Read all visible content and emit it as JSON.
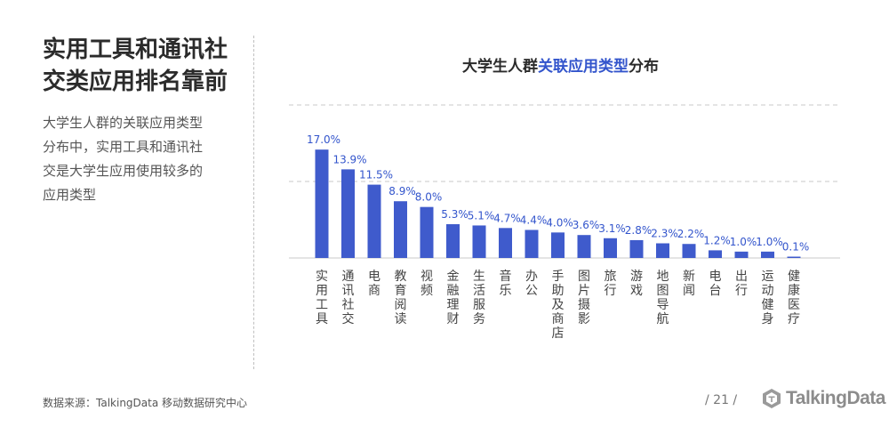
{
  "left": {
    "title_lines": [
      "实用工具和通讯社",
      "交类应用排名靠前"
    ],
    "desc_lines": [
      "大学生人群的关联应用类型",
      "分布中，实用工具和通讯社",
      "交是大学生应用使用较多的",
      "应用类型"
    ]
  },
  "header": {
    "title_pre": "大学生人群",
    "title_highlight": "关联应用类型",
    "title_post": "分布"
  },
  "footer": {
    "source": "数据来源：TalkingData 移动数据研究中心",
    "page": "/ 21 /",
    "logo_text": "TalkingData"
  },
  "colors": {
    "bar": "#3f5bcc",
    "label": "#3355cc",
    "highlight": "#3355cc",
    "grid": "#c8c8c8"
  },
  "chart_data": {
    "type": "bar",
    "categories": [
      "实用工具",
      "通讯社交",
      "电商",
      "教育阅读",
      "视频",
      "金融理财",
      "生活服务",
      "音乐",
      "办公",
      "手助及商店",
      "图片摄影",
      "旅行",
      "游戏",
      "地图导航",
      "新闻",
      "电台",
      "出行",
      "运动健身",
      "健康医疗"
    ],
    "values": [
      17.0,
      13.9,
      11.5,
      8.9,
      8.0,
      5.3,
      5.1,
      4.7,
      4.4,
      4.0,
      3.6,
      3.1,
      2.8,
      2.3,
      2.2,
      1.2,
      1.0,
      1.0,
      0.1
    ],
    "value_labels": [
      "17.0%",
      "13.9%",
      "11.5%",
      "8.9%",
      "8.0%",
      "5.3%",
      "5.1%",
      "4.7%",
      "4.4%",
      "4.0%",
      "3.6%",
      "3.1%",
      "2.8%",
      "2.3%",
      "2.2%",
      "1.2%",
      "1.0%",
      "1.0%",
      "0.1%"
    ],
    "title": "大学生人群关联应用类型分布",
    "xlabel": "",
    "ylabel": "",
    "ylim": [
      0,
      24
    ],
    "gridlines": [
      0,
      12,
      24
    ],
    "grid": true,
    "legend": "none"
  }
}
